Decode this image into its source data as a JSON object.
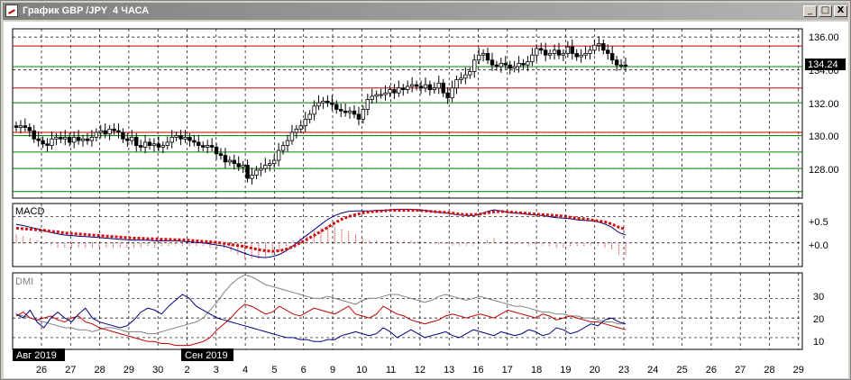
{
  "window": {
    "title": "График GBP /JPY  4 ЧАСА",
    "buttons": [
      "_",
      "□",
      "X"
    ]
  },
  "price_panel": {
    "y_ticks": [
      "136.00",
      "134.00",
      "132.00",
      "130.00",
      "128.00"
    ],
    "current_price": "134.24"
  },
  "macd_panel": {
    "label": "MACD",
    "y_ticks": [
      "+0.5",
      "+0.0"
    ]
  },
  "dmi_panel": {
    "label": "DMI",
    "y_ticks": [
      "30",
      "20",
      "10"
    ]
  },
  "x_axis": {
    "month_labels": [
      "Авг 2019",
      "Сен 2019"
    ],
    "day_labels": [
      "26",
      "27",
      "28",
      "29",
      "30",
      "2",
      "3",
      "4",
      "5",
      "6",
      "9",
      "10",
      "11",
      "12",
      "13",
      "16",
      "17",
      "18",
      "19",
      "20",
      "23",
      "24",
      "25",
      "26",
      "27",
      "28",
      "29"
    ]
  },
  "colors": {
    "red_line": "#c00000",
    "green_line": "#008000",
    "macd_signal": "#d01010",
    "macd_line": "#000080",
    "dmi_adx": "#808080",
    "dmi_plus": "#000080",
    "dmi_minus": "#c00000"
  },
  "chart_data": [
    {
      "type": "candlestick",
      "title": "",
      "ylim": [
        126.2,
        136.5
      ],
      "horizontal_levels": {
        "red": [
          135.45,
          132.9,
          130.2
        ],
        "green": [
          134.2,
          132.0,
          130.0,
          129.0,
          128.0,
          126.6
        ]
      },
      "close": [
        130.5,
        130.6,
        130.5,
        130.3,
        129.8,
        129.7,
        129.5,
        129.4,
        129.8,
        129.9,
        129.8,
        129.9,
        129.6,
        129.9,
        129.7,
        129.8,
        129.7,
        129.9,
        130.2,
        130.3,
        130.1,
        130.4,
        130.3,
        130.2,
        129.8,
        129.7,
        129.9,
        129.4,
        129.3,
        129.6,
        129.4,
        129.5,
        129.3,
        129.4,
        129.6,
        129.9,
        130.0,
        129.8,
        129.9,
        129.7,
        129.6,
        129.4,
        129.3,
        129.4,
        129.3,
        128.9,
        128.8,
        128.4,
        128.5,
        128.3,
        128.1,
        128.2,
        127.4,
        127.6,
        127.9,
        128.0,
        128.2,
        128.3,
        128.5,
        129.1,
        129.4,
        129.7,
        130.2,
        130.4,
        130.6,
        131.0,
        131.3,
        131.8,
        132.0,
        132.1,
        132.0,
        131.9,
        131.6,
        131.5,
        131.4,
        131.5,
        131.3,
        131.0,
        131.6,
        132.2,
        132.4,
        132.5,
        132.5,
        132.6,
        132.8,
        132.6,
        132.9,
        132.8,
        133.0,
        133.1,
        133.0,
        132.9,
        133.1,
        132.8,
        132.9,
        133.2,
        132.6,
        132.3,
        132.9,
        133.4,
        133.5,
        133.7,
        133.9,
        134.6,
        134.9,
        135.0,
        134.6,
        134.3,
        134.2,
        134.4,
        134.3,
        134.1,
        134.2,
        134.4,
        134.3,
        134.5,
        134.9,
        135.3,
        135.2,
        134.9,
        135.0,
        135.2,
        134.9,
        135.0,
        135.4,
        135.0,
        134.8,
        134.9,
        135.0,
        135.2,
        135.5,
        135.6,
        135.2,
        135.0,
        134.6,
        134.3,
        134.3,
        134.24
      ]
    },
    {
      "type": "line",
      "name": "MACD",
      "ylim": [
        -0.45,
        0.75
      ],
      "macd": [
        0.35,
        0.33,
        0.3,
        0.27,
        0.23,
        0.2,
        0.17,
        0.15,
        0.14,
        0.13,
        0.12,
        0.11,
        0.1,
        0.09,
        0.08,
        0.07,
        0.06,
        0.05,
        0.05,
        0.05,
        0.04,
        0.04,
        0.04,
        0.04,
        0.03,
        0.02,
        0.01,
        0.0,
        -0.02,
        -0.04,
        -0.06,
        -0.1,
        -0.15,
        -0.2,
        -0.24,
        -0.27,
        -0.28,
        -0.26,
        -0.22,
        -0.15,
        -0.05,
        0.05,
        0.15,
        0.25,
        0.35,
        0.45,
        0.52,
        0.57,
        0.6,
        0.61,
        0.61,
        0.61,
        0.62,
        0.62,
        0.63,
        0.64,
        0.64,
        0.64,
        0.63,
        0.62,
        0.6,
        0.58,
        0.57,
        0.55,
        0.53,
        0.52,
        0.52,
        0.55,
        0.6,
        0.63,
        0.61,
        0.58,
        0.57,
        0.56,
        0.54,
        0.53,
        0.52,
        0.5,
        0.48,
        0.47,
        0.46,
        0.44,
        0.43,
        0.42,
        0.4,
        0.36,
        0.3,
        0.2,
        0.15
      ],
      "signal": [
        0.28,
        0.27,
        0.26,
        0.25,
        0.24,
        0.22,
        0.21,
        0.19,
        0.18,
        0.17,
        0.16,
        0.15,
        0.14,
        0.13,
        0.12,
        0.11,
        0.1,
        0.09,
        0.09,
        0.08,
        0.08,
        0.07,
        0.07,
        0.06,
        0.06,
        0.05,
        0.04,
        0.03,
        0.02,
        0.01,
        -0.01,
        -0.03,
        -0.05,
        -0.07,
        -0.1,
        -0.13,
        -0.15,
        -0.16,
        -0.15,
        -0.12,
        -0.07,
        0.0,
        0.07,
        0.14,
        0.22,
        0.3,
        0.38,
        0.45,
        0.5,
        0.54,
        0.57,
        0.59,
        0.6,
        0.61,
        0.62,
        0.62,
        0.62,
        0.62,
        0.62,
        0.61,
        0.6,
        0.59,
        0.58,
        0.57,
        0.55,
        0.54,
        0.54,
        0.55,
        0.57,
        0.59,
        0.6,
        0.59,
        0.58,
        0.57,
        0.56,
        0.55,
        0.54,
        0.53,
        0.52,
        0.51,
        0.49,
        0.47,
        0.46,
        0.44,
        0.42,
        0.4,
        0.36,
        0.3,
        0.26
      ]
    },
    {
      "type": "line",
      "name": "DMI",
      "ylim": [
        4,
        43
      ],
      "adx": [
        22,
        21,
        20,
        19,
        18,
        17,
        16,
        15,
        15,
        14,
        14,
        13,
        14,
        15,
        15,
        14,
        13,
        13,
        13,
        12,
        12,
        13,
        14,
        15,
        16,
        17,
        18,
        20,
        24,
        28,
        33,
        37,
        40,
        42,
        41,
        39,
        37,
        36,
        35,
        34,
        33,
        32,
        31,
        30,
        30,
        31,
        30,
        29,
        28,
        27,
        29,
        30,
        30,
        31,
        32,
        32,
        31,
        30,
        29,
        28,
        29,
        31,
        32,
        31,
        30,
        29,
        30,
        31,
        30,
        29,
        28,
        27,
        26,
        26,
        25,
        24,
        23,
        23,
        22,
        22,
        21,
        21,
        20,
        20,
        19,
        18,
        18,
        17,
        17
      ],
      "plus_di": [
        22,
        20,
        24,
        18,
        15,
        20,
        23,
        20,
        18,
        22,
        25,
        20,
        18,
        17,
        16,
        15,
        16,
        19,
        23,
        25,
        24,
        22,
        26,
        29,
        32,
        30,
        26,
        24,
        22,
        20,
        19,
        18,
        17,
        16,
        15,
        14,
        13,
        12,
        11,
        10,
        10,
        9,
        9,
        8,
        8,
        9,
        9,
        11,
        12,
        13,
        12,
        11,
        12,
        15,
        13,
        10,
        12,
        14,
        12,
        10,
        11,
        12,
        13,
        11,
        10,
        12,
        14,
        13,
        12,
        11,
        13,
        12,
        11,
        12,
        14,
        13,
        11,
        12,
        15,
        14,
        12,
        13,
        15,
        17,
        16,
        19,
        20,
        18,
        17
      ],
      "minus_di": [
        21,
        23,
        20,
        19,
        20,
        21,
        19,
        18,
        20,
        21,
        18,
        17,
        15,
        14,
        13,
        12,
        11,
        10,
        9,
        8,
        8,
        7,
        7,
        6,
        6,
        6,
        7,
        8,
        10,
        14,
        17,
        20,
        24,
        27,
        26,
        24,
        22,
        23,
        26,
        24,
        22,
        21,
        23,
        25,
        24,
        23,
        22,
        24,
        26,
        22,
        21,
        20,
        22,
        26,
        24,
        22,
        21,
        19,
        18,
        17,
        18,
        19,
        21,
        22,
        21,
        20,
        21,
        22,
        21,
        20,
        22,
        24,
        23,
        22,
        21,
        20,
        22,
        21,
        19,
        20,
        21,
        20,
        19,
        18,
        18,
        17,
        16,
        15,
        14
      ]
    }
  ]
}
